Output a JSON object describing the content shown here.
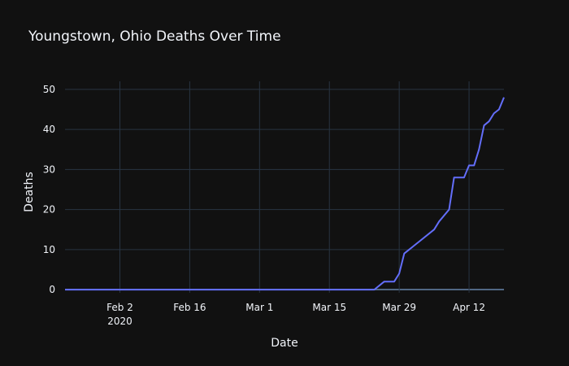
{
  "chart_data": {
    "type": "line",
    "title": "Youngstown, Ohio Deaths Over Time",
    "xlabel": "Date",
    "ylabel": "Deaths",
    "x_range": [
      "2020-01-22",
      "2020-04-19"
    ],
    "ylim": [
      -0.8,
      52
    ],
    "x_ticks": [
      {
        "date": "2020-02-02",
        "label": "Feb 2",
        "sublabel": "2020"
      },
      {
        "date": "2020-02-16",
        "label": "Feb 16"
      },
      {
        "date": "2020-03-01",
        "label": "Mar 1"
      },
      {
        "date": "2020-03-15",
        "label": "Mar 15"
      },
      {
        "date": "2020-03-29",
        "label": "Mar 29"
      },
      {
        "date": "2020-04-12",
        "label": "Apr 12"
      }
    ],
    "y_ticks": [
      0,
      10,
      20,
      30,
      40,
      50
    ],
    "grid": true,
    "colors": {
      "line": "#636efa",
      "background": "#111111",
      "grid": "#283442",
      "zeroline": "#506784"
    },
    "series": [
      {
        "x": [
          "2020-01-22",
          "2020-03-24",
          "2020-03-26",
          "2020-03-28",
          "2020-03-29",
          "2020-03-30",
          "2020-04-02",
          "2020-04-05",
          "2020-04-06",
          "2020-04-08",
          "2020-04-09",
          "2020-04-10",
          "2020-04-11",
          "2020-04-12",
          "2020-04-13",
          "2020-04-14",
          "2020-04-15",
          "2020-04-16",
          "2020-04-17",
          "2020-04-18",
          "2020-04-19"
        ],
        "y": [
          0,
          0,
          2,
          2,
          4,
          9,
          12,
          15,
          17,
          20,
          28,
          28,
          28,
          31,
          31,
          35,
          41,
          42,
          44,
          45,
          48
        ]
      }
    ]
  }
}
